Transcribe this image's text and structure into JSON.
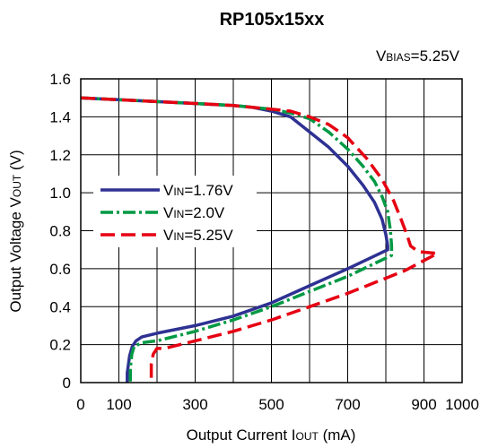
{
  "chart_data": {
    "type": "line",
    "title": "RP105x15xx",
    "annotation": {
      "prefix": "V",
      "sub": "BIAS",
      "suffix": "=5.25V"
    },
    "xlabel": {
      "prefix": "Output Current I",
      "sub": "OUT",
      "suffix": " (mA)"
    },
    "ylabel": {
      "prefix": "Output Voltage V",
      "sub": "OUT",
      "suffix": " (V)"
    },
    "xlim": [
      0,
      1000
    ],
    "ylim": [
      0,
      1.6
    ],
    "xticks": [
      0,
      100,
      300,
      500,
      700,
      900,
      1000
    ],
    "xtick_labels": [
      "0",
      "100",
      "300",
      "500",
      "700",
      "900",
      "1000"
    ],
    "xgrid": [
      0,
      100,
      200,
      300,
      400,
      500,
      600,
      700,
      800,
      900,
      1000
    ],
    "yticks": [
      0,
      0.2,
      0.4,
      0.6,
      0.8,
      1.0,
      1.2,
      1.4,
      1.6
    ],
    "ytick_labels": [
      "0",
      "0.2",
      "0.4",
      "0.6",
      "0.8",
      "1.0",
      "1.2",
      "1.4",
      "1.6"
    ],
    "grid": true,
    "legend_position": "middle-left",
    "series": [
      {
        "name": {
          "prefix": "V",
          "sub": "IN",
          "suffix": "=1.76V"
        },
        "color": "#2e3192",
        "dash": "solid",
        "points": [
          [
            0,
            1.5
          ],
          [
            100,
            1.49
          ],
          [
            200,
            1.48
          ],
          [
            300,
            1.47
          ],
          [
            400,
            1.46
          ],
          [
            450,
            1.45
          ],
          [
            500,
            1.43
          ],
          [
            550,
            1.4
          ],
          [
            600,
            1.32
          ],
          [
            650,
            1.24
          ],
          [
            700,
            1.14
          ],
          [
            740,
            1.04
          ],
          [
            770,
            0.95
          ],
          [
            790,
            0.86
          ],
          [
            800,
            0.78
          ],
          [
            805,
            0.72
          ],
          [
            805,
            0.7
          ],
          [
            700,
            0.6
          ],
          [
            600,
            0.51
          ],
          [
            500,
            0.42
          ],
          [
            400,
            0.35
          ],
          [
            300,
            0.3
          ],
          [
            200,
            0.26
          ],
          [
            160,
            0.24
          ],
          [
            145,
            0.22
          ],
          [
            135,
            0.19
          ],
          [
            128,
            0.14
          ],
          [
            122,
            0.05
          ],
          [
            122,
            0
          ]
        ]
      },
      {
        "name": {
          "prefix": "V",
          "sub": "IN",
          "suffix": "=2.0V"
        },
        "color": "#009944",
        "dash": "dashdot",
        "points": [
          [
            0,
            1.5
          ],
          [
            100,
            1.49
          ],
          [
            200,
            1.48
          ],
          [
            300,
            1.47
          ],
          [
            400,
            1.46
          ],
          [
            500,
            1.44
          ],
          [
            550,
            1.42
          ],
          [
            600,
            1.39
          ],
          [
            650,
            1.32
          ],
          [
            700,
            1.23
          ],
          [
            740,
            1.14
          ],
          [
            770,
            1.06
          ],
          [
            790,
            0.98
          ],
          [
            805,
            0.9
          ],
          [
            812,
            0.8
          ],
          [
            815,
            0.72
          ],
          [
            815,
            0.67
          ],
          [
            700,
            0.56
          ],
          [
            600,
            0.48
          ],
          [
            500,
            0.4
          ],
          [
            400,
            0.33
          ],
          [
            300,
            0.27
          ],
          [
            200,
            0.22
          ],
          [
            160,
            0.21
          ],
          [
            140,
            0.19
          ],
          [
            134,
            0.15
          ],
          [
            130,
            0.08
          ],
          [
            130,
            0
          ]
        ]
      },
      {
        "name": {
          "prefix": "V",
          "sub": "IN",
          "suffix": "=5.25V"
        },
        "color": "#e60012",
        "dash": "dashed",
        "points": [
          [
            0,
            1.5
          ],
          [
            100,
            1.49
          ],
          [
            200,
            1.48
          ],
          [
            300,
            1.47
          ],
          [
            400,
            1.46
          ],
          [
            500,
            1.44
          ],
          [
            550,
            1.43
          ],
          [
            600,
            1.4
          ],
          [
            650,
            1.36
          ],
          [
            700,
            1.29
          ],
          [
            750,
            1.18
          ],
          [
            790,
            1.07
          ],
          [
            820,
            0.96
          ],
          [
            840,
            0.86
          ],
          [
            855,
            0.78
          ],
          [
            865,
            0.72
          ],
          [
            885,
            0.69
          ],
          [
            935,
            0.68
          ],
          [
            850,
            0.59
          ],
          [
            700,
            0.47
          ],
          [
            600,
            0.4
          ],
          [
            500,
            0.33
          ],
          [
            400,
            0.27
          ],
          [
            300,
            0.22
          ],
          [
            220,
            0.18
          ],
          [
            200,
            0.18
          ],
          [
            190,
            0.15
          ],
          [
            185,
            0.1
          ],
          [
            185,
            0
          ]
        ]
      }
    ]
  }
}
